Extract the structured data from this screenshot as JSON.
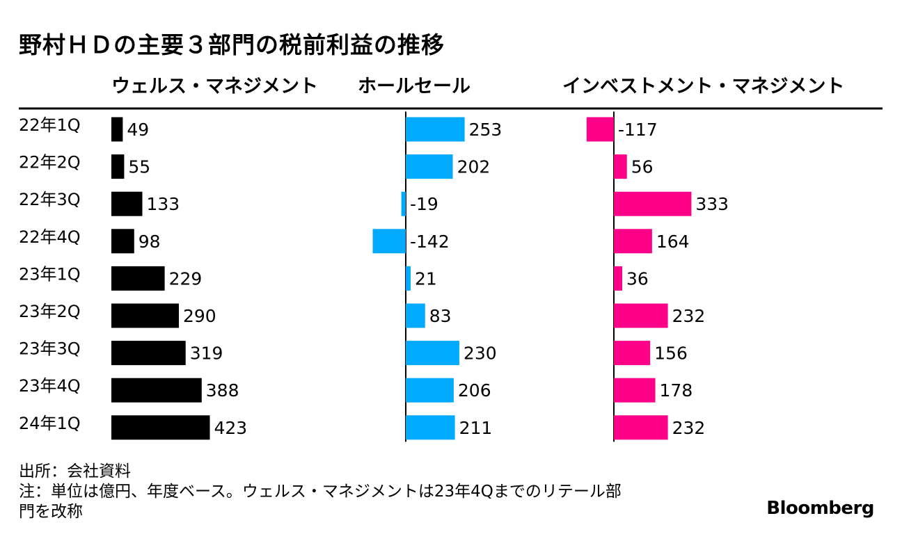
{
  "title": "野村ＨＤの主要３部門の税前利益の推移",
  "source": "出所：会社資料",
  "note_line1": "注：単位は億円、年度ベース。ウェルス・マネジメントは23年4Qまでのリテール部",
  "note_line2": "門を改称",
  "logo": "Bloomberg",
  "chart_data": {
    "type": "bar",
    "orientation": "horizontal",
    "categories": [
      "22年1Q",
      "22年2Q",
      "22年3Q",
      "22年4Q",
      "23年1Q",
      "23年2Q",
      "23年3Q",
      "23年4Q",
      "24年1Q"
    ],
    "series": [
      {
        "name": "ウェルス・マネジメント",
        "color": "#000000",
        "values": [
          49,
          55,
          133,
          98,
          229,
          290,
          319,
          388,
          423
        ]
      },
      {
        "name": "ホールセール",
        "color": "#00aaff",
        "values": [
          253,
          202,
          -19,
          -142,
          21,
          83,
          230,
          206,
          211
        ]
      },
      {
        "name": "インベストメント・マネジメント",
        "color": "#ff0088",
        "values": [
          -117,
          56,
          333,
          164,
          36,
          232,
          156,
          178,
          232
        ]
      }
    ],
    "legend": "top",
    "grid": false
  }
}
